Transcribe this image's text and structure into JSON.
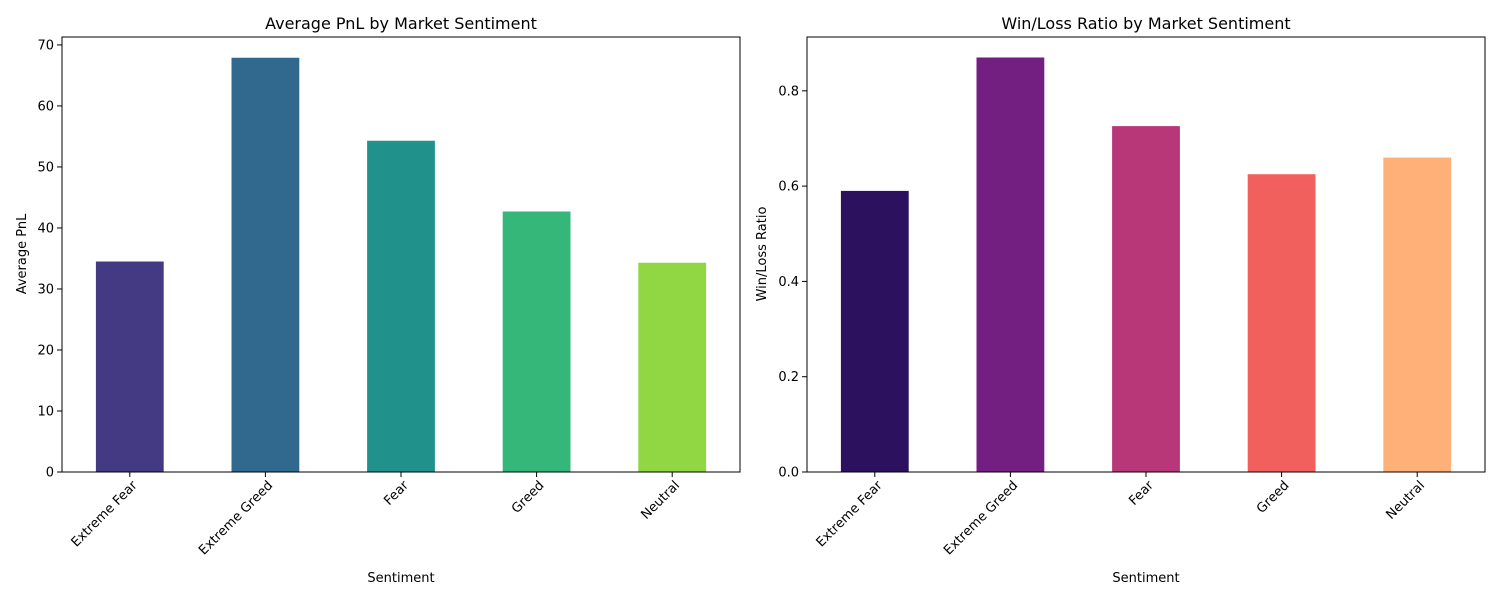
{
  "chart_data": [
    {
      "type": "bar",
      "title": "Average PnL by Market Sentiment",
      "xlabel": "Sentiment",
      "ylabel": "Average PnL",
      "categories": [
        "Extreme Fear",
        "Extreme Greed",
        "Fear",
        "Greed",
        "Neutral"
      ],
      "values": [
        34.5,
        67.9,
        54.3,
        42.7,
        34.3
      ],
      "colors": [
        "#443983",
        "#31688e",
        "#21918c",
        "#35b779",
        "#90d743"
      ],
      "ylim": [
        0,
        71.3
      ],
      "yticks": [
        0,
        10,
        20,
        30,
        40,
        50,
        60,
        70
      ],
      "ytick_labels": [
        "0",
        "10",
        "20",
        "30",
        "40",
        "50",
        "60",
        "70"
      ],
      "grid": false,
      "legend": "none"
    },
    {
      "type": "bar",
      "title": "Win/Loss Ratio by Market Sentiment",
      "xlabel": "Sentiment",
      "ylabel": "Win/Loss Ratio",
      "categories": [
        "Extreme Fear",
        "Extreme Greed",
        "Fear",
        "Greed",
        "Neutral"
      ],
      "values": [
        0.59,
        0.87,
        0.726,
        0.625,
        0.66
      ],
      "colors": [
        "#2c115f",
        "#721f81",
        "#b73779",
        "#f1605d",
        "#feb078"
      ],
      "ylim": [
        0,
        0.913
      ],
      "yticks": [
        0,
        0.2,
        0.4,
        0.6,
        0.8
      ],
      "ytick_labels": [
        "0.0",
        "0.2",
        "0.4",
        "0.6",
        "0.8"
      ],
      "grid": false,
      "legend": "none"
    }
  ]
}
